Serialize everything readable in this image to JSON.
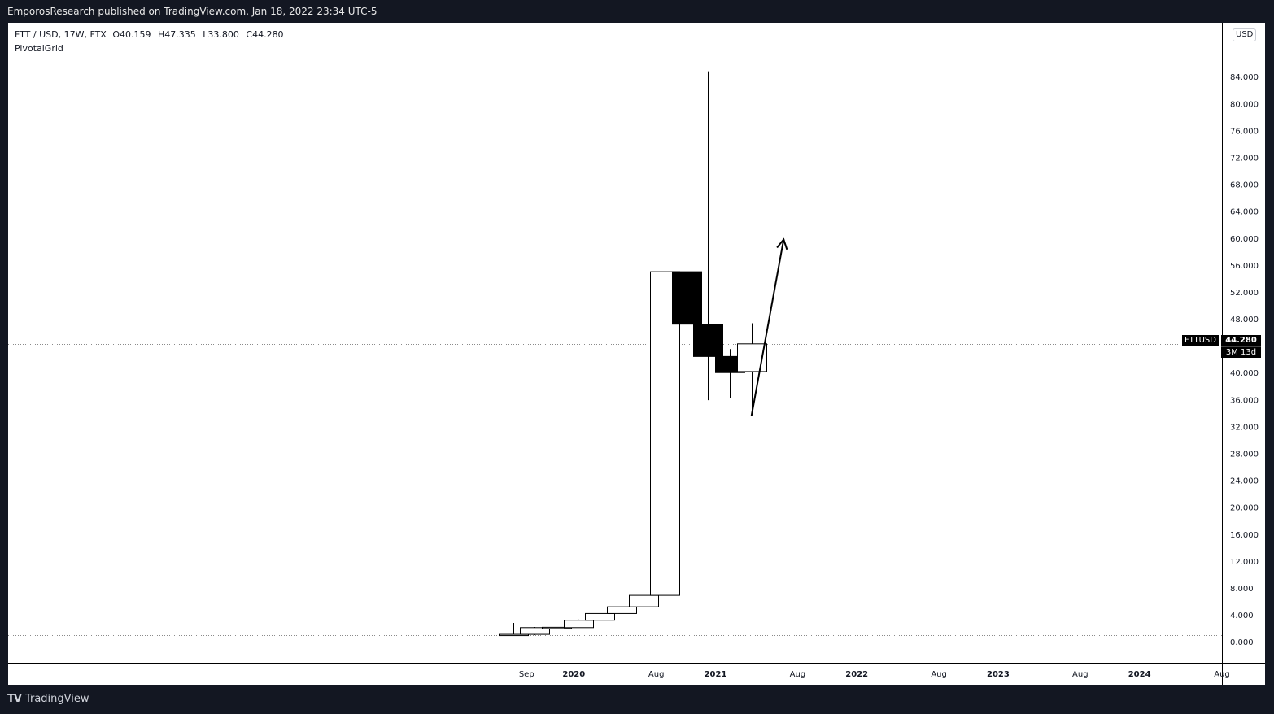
{
  "header": {
    "published": "EmporosResearch published on TradingView.com, Jan 18, 2022 23:34 UTC-5"
  },
  "legend": {
    "symbol": "FTT / USD, 17W, FTX",
    "open": "O40.159",
    "high": "H47.335",
    "low": "L33.800",
    "close": "C44.280",
    "indicator": "PivotalGrid"
  },
  "price_axis": {
    "currency": "USD",
    "last_price": "44.280",
    "countdown": "3M 13d",
    "symbol_tag": "FTTUSD"
  },
  "footer": {
    "brand": "TradingView",
    "logo_mark": "TV"
  },
  "colors": {
    "background": "#131722",
    "chart_bg": "#ffffff",
    "candle_up_fill": "#ffffff",
    "candle_down_fill": "#000000",
    "candle_border": "#000000",
    "grid_line": "#8a8a8a"
  },
  "chart_data": {
    "type": "candlestick",
    "symbol": "FTT / USD",
    "interval": "17W",
    "exchange": "FTX",
    "yaxis": {
      "ticks": [
        "0.000",
        "4.000",
        "8.000",
        "12.000",
        "16.000",
        "20.000",
        "24.000",
        "28.000",
        "32.000",
        "36.000",
        "40.000",
        "44.000",
        "48.000",
        "52.000",
        "56.000",
        "60.000",
        "64.000",
        "68.000",
        "72.000",
        "76.000",
        "80.000",
        "84.000"
      ],
      "range": [
        -3,
        92
      ],
      "position": "right"
    },
    "xaxis": {
      "ticks": [
        {
          "label": "Sep",
          "x": "2019-09-01",
          "bold": false
        },
        {
          "label": "2020",
          "x": "2020-01-01",
          "bold": true
        },
        {
          "label": "Aug",
          "x": "2020-08-01",
          "bold": false
        },
        {
          "label": "2021",
          "x": "2021-01-01",
          "bold": true
        },
        {
          "label": "Aug",
          "x": "2021-08-01",
          "bold": false
        },
        {
          "label": "2022",
          "x": "2022-01-01",
          "bold": true
        },
        {
          "label": "Aug",
          "x": "2022-08-01",
          "bold": false
        },
        {
          "label": "2023",
          "x": "2023-01-01",
          "bold": true
        },
        {
          "label": "Aug",
          "x": "2023-08-01",
          "bold": false
        },
        {
          "label": "2024",
          "x": "2024-01-01",
          "bold": true
        },
        {
          "label": "Aug",
          "x": "2024-08-01",
          "bold": false
        }
      ],
      "range": [
        "2016-01-01",
        "2024-08-01"
      ]
    },
    "candles": [
      {
        "t": "2019-07-28",
        "o": 1.05,
        "h": 2.8,
        "l": 1.0,
        "c": 1.1
      },
      {
        "t": "2019-09-22",
        "o": 1.1,
        "h": 2.2,
        "l": 1.0,
        "c": 2.1
      },
      {
        "t": "2019-11-17",
        "o": 2.1,
        "h": 2.2,
        "l": 1.9,
        "c": 2.15
      },
      {
        "t": "2020-01-12",
        "o": 2.1,
        "h": 3.3,
        "l": 2.1,
        "c": 3.2
      },
      {
        "t": "2020-03-08",
        "o": 3.2,
        "h": 4.2,
        "l": 2.6,
        "c": 4.2
      },
      {
        "t": "2020-05-03",
        "o": 4.2,
        "h": 5.5,
        "l": 3.3,
        "c": 5.2
      },
      {
        "t": "2020-06-28",
        "o": 5.2,
        "h": 7.0,
        "l": 5.1,
        "c": 6.9
      },
      {
        "t": "2020-08-23",
        "o": 6.9,
        "h": 59.6,
        "l": 6.2,
        "c": 55.0
      },
      {
        "t": "2020-10-18",
        "o": 55.0,
        "h": 63.3,
        "l": 21.8,
        "c": 47.2
      },
      {
        "t": "2020-12-13",
        "o": 47.2,
        "h": 84.8,
        "l": 35.9,
        "c": 42.4
      },
      {
        "t": "2021-02-07",
        "o": 42.4,
        "h": 43.5,
        "l": 36.2,
        "c": 40.0
      },
      {
        "t": "2021-04-04",
        "o": 40.159,
        "h": 47.335,
        "l": 33.8,
        "c": 44.28
      }
    ],
    "reference_lines": [
      {
        "price": 84.8,
        "style": "dotted"
      },
      {
        "price": 44.28,
        "style": "dotted"
      },
      {
        "price": 1.0,
        "style": "dotted"
      }
    ],
    "annotations": [
      {
        "type": "arrow",
        "from": {
          "t": "2021-04-04",
          "price": 33.6
        },
        "to": {
          "t": "2021-06-26",
          "price": 59.8
        }
      }
    ]
  }
}
